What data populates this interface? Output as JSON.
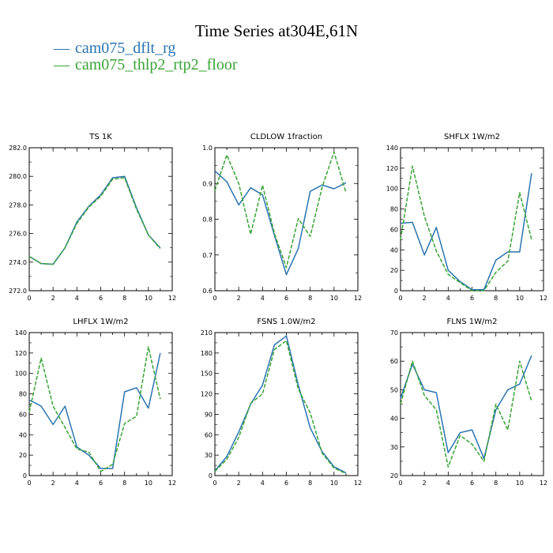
{
  "figure": {
    "title": "Time Series at304E,61N",
    "legend": [
      {
        "label": "cam075_dflt_rg",
        "color": "#2a74b0"
      },
      {
        "label": "cam075_thlp2_rtp2_floor",
        "color": "#3aa335"
      }
    ]
  },
  "chart_data": [
    {
      "type": "line",
      "title": "TS   1K",
      "x": [
        0,
        1,
        2,
        3,
        4,
        5,
        6,
        7,
        8,
        9,
        10,
        11
      ],
      "xlim": [
        0,
        12
      ],
      "xticks": [
        0,
        2,
        4,
        6,
        8,
        10,
        12
      ],
      "ylim": [
        272,
        282
      ],
      "yticks": [
        "272.0",
        "274.0",
        "276.0",
        "278.0",
        "280.0",
        "282.0"
      ],
      "series": [
        {
          "name": "cam075_dflt_rg",
          "values": [
            274.4,
            273.9,
            273.85,
            275.0,
            276.8,
            277.9,
            278.7,
            279.9,
            280.0,
            277.8,
            275.9,
            275.0
          ]
        },
        {
          "name": "cam075_thlp2_rtp2_floor",
          "values": [
            274.4,
            273.9,
            273.85,
            275.0,
            276.7,
            277.85,
            278.6,
            279.8,
            279.9,
            277.7,
            275.9,
            274.95
          ]
        }
      ]
    },
    {
      "type": "line",
      "title": "CLDLOW   1fraction",
      "x": [
        0,
        1,
        2,
        3,
        4,
        5,
        6,
        7,
        8,
        9,
        10,
        11
      ],
      "xlim": [
        0,
        12
      ],
      "xticks": [
        0,
        2,
        4,
        6,
        8,
        10,
        12
      ],
      "ylim": [
        0.6,
        1.0
      ],
      "yticks": [
        "0.6",
        "0.7",
        "0.8",
        "0.9",
        "1.0"
      ],
      "series": [
        {
          "name": "cam075_dflt_rg",
          "values": [
            0.935,
            0.905,
            0.84,
            0.888,
            0.868,
            0.755,
            0.645,
            0.718,
            0.878,
            0.896,
            0.885,
            0.902
          ]
        },
        {
          "name": "cam075_thlp2_rtp2_floor",
          "values": [
            0.88,
            0.98,
            0.9,
            0.758,
            0.895,
            0.76,
            0.665,
            0.802,
            0.752,
            0.89,
            0.988,
            0.875
          ]
        }
      ]
    },
    {
      "type": "line",
      "title": "SHFLX   1W/m2",
      "x": [
        0,
        1,
        2,
        3,
        4,
        5,
        6,
        7,
        8,
        9,
        10,
        11
      ],
      "xlim": [
        0,
        12
      ],
      "xticks": [
        0,
        2,
        4,
        6,
        8,
        10,
        12
      ],
      "ylim": [
        0,
        140
      ],
      "yticks": [
        "0",
        "20",
        "40",
        "60",
        "80",
        "100",
        "120",
        "140"
      ],
      "series": [
        {
          "name": "cam075_dflt_rg",
          "values": [
            66,
            67,
            35,
            62,
            20,
            9,
            1,
            1,
            30,
            38,
            38,
            115
          ]
        },
        {
          "name": "cam075_thlp2_rtp2_floor",
          "values": [
            50,
            122,
            73,
            39,
            16,
            8,
            0,
            0,
            18,
            29,
            96,
            50
          ]
        }
      ]
    },
    {
      "type": "line",
      "title": "LHFLX   1W/m2",
      "x": [
        0,
        1,
        2,
        3,
        4,
        5,
        6,
        7,
        8,
        9,
        10,
        11
      ],
      "xlim": [
        0,
        12
      ],
      "xticks": [
        0,
        2,
        4,
        6,
        8,
        10,
        12
      ],
      "ylim": [
        0,
        140
      ],
      "yticks": [
        "0",
        "20",
        "40",
        "60",
        "80",
        "100",
        "120",
        "140"
      ],
      "series": [
        {
          "name": "cam075_dflt_rg",
          "values": [
            74,
            68,
            50,
            68,
            28,
            20,
            7,
            7,
            82,
            86,
            66,
            120
          ]
        },
        {
          "name": "cam075_thlp2_rtp2_floor",
          "values": [
            62,
            115,
            68,
            47,
            26,
            23,
            4,
            11,
            51,
            58,
            126,
            75
          ]
        }
      ]
    },
    {
      "type": "line",
      "title": "FSNS   1.0W/m2",
      "x": [
        0,
        1,
        2,
        3,
        4,
        5,
        6,
        7,
        8,
        9,
        10,
        11
      ],
      "xlim": [
        0,
        12
      ],
      "xticks": [
        0,
        2,
        4,
        6,
        8,
        10,
        12
      ],
      "ylim": [
        0,
        210
      ],
      "yticks": [
        "0",
        "30",
        "60",
        "90",
        "120",
        "150",
        "180",
        "210"
      ],
      "series": [
        {
          "name": "cam075_dflt_rg",
          "values": [
            7,
            28,
            64,
            105,
            133,
            192,
            205,
            133,
            70,
            35,
            13,
            4
          ]
        },
        {
          "name": "cam075_thlp2_rtp2_floor",
          "values": [
            6,
            24,
            56,
            106,
            120,
            185,
            198,
            127,
            92,
            33,
            11,
            3
          ]
        }
      ]
    },
    {
      "type": "line",
      "title": "FLNS   1W/m2",
      "x": [
        0,
        1,
        2,
        3,
        4,
        5,
        6,
        7,
        8,
        9,
        10,
        11
      ],
      "xlim": [
        0,
        12
      ],
      "xticks": [
        0,
        2,
        4,
        6,
        8,
        10,
        12
      ],
      "ylim": [
        20,
        70
      ],
      "yticks": [
        "20",
        "30",
        "40",
        "50",
        "60",
        "70"
      ],
      "series": [
        {
          "name": "cam075_dflt_rg",
          "values": [
            47,
            59,
            50,
            49,
            28,
            35,
            36,
            26,
            43,
            50,
            52,
            62
          ]
        },
        {
          "name": "cam075_thlp2_rtp2_floor",
          "values": [
            45,
            60,
            48,
            43,
            23,
            34,
            31,
            25,
            45,
            36,
            60,
            46
          ]
        }
      ]
    }
  ]
}
